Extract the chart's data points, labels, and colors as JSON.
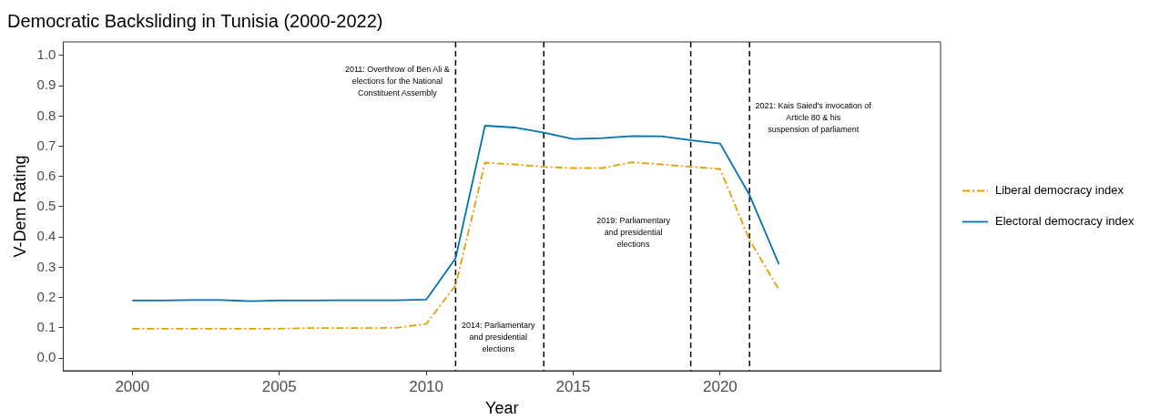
{
  "chart_data": {
    "type": "line",
    "title": "Democratic Backsliding in Tunisia (2000-2022)",
    "xlabel": "Year",
    "ylabel": "V-Dem Rating",
    "x": [
      2000,
      2001,
      2002,
      2003,
      2004,
      2005,
      2006,
      2007,
      2008,
      2009,
      2010,
      2011,
      2012,
      2013,
      2014,
      2015,
      2016,
      2017,
      2018,
      2019,
      2020,
      2021,
      2022
    ],
    "series": [
      {
        "name": "Liberal democracy index",
        "color": "#e69f00",
        "line_style": "dashed",
        "values": [
          0.097,
          0.097,
          0.097,
          0.097,
          0.097,
          0.097,
          0.099,
          0.099,
          0.099,
          0.1,
          0.113,
          0.24,
          0.646,
          0.64,
          0.632,
          0.628,
          0.628,
          0.647,
          0.64,
          0.632,
          0.625,
          0.39,
          0.226
        ]
      },
      {
        "name": "Electoral democracy index",
        "color": "#0072b2",
        "line_style": "solid",
        "values": [
          0.19,
          0.19,
          0.192,
          0.192,
          0.188,
          0.19,
          0.19,
          0.191,
          0.191,
          0.191,
          0.193,
          0.33,
          0.768,
          0.762,
          0.745,
          0.724,
          0.727,
          0.734,
          0.733,
          0.72,
          0.709,
          0.539,
          0.31
        ]
      }
    ],
    "xlim": [
      1997.65,
      2027.5
    ],
    "xticks": [
      2000,
      2005,
      2010,
      2015,
      2020
    ],
    "ylim": [
      -0.042,
      1.045
    ],
    "yticks": [
      {
        "value": 0,
        "label": "0.0"
      },
      0.1,
      0.2,
      0.3,
      0.4,
      0.5,
      0.6,
      0.7,
      0.8,
      0.9,
      {
        "value": 1,
        "label": "1.0"
      }
    ],
    "grid": false,
    "legend": "right",
    "marker": "none",
    "ref_lines": [
      {
        "axis": "x",
        "value": 2011,
        "line_style": "dashed",
        "label": "2011: Overthrow of Ben Ali &\nelections for the National\nConstituent Assembly"
      },
      {
        "axis": "x",
        "value": 2014,
        "line_style": "dashed",
        "label": "2014: Parliamentary\nand presidential\nelections"
      },
      {
        "axis": "x",
        "value": 2019,
        "line_style": "dashed",
        "label": "2019: Parliamentary\nand presidential\nelections"
      },
      {
        "axis": "x",
        "value": 2021,
        "line_style": "dashed",
        "label": "2021: Kais Saied's invocation of\nArticle 80 & his\nsuspension of parliament"
      }
    ]
  }
}
